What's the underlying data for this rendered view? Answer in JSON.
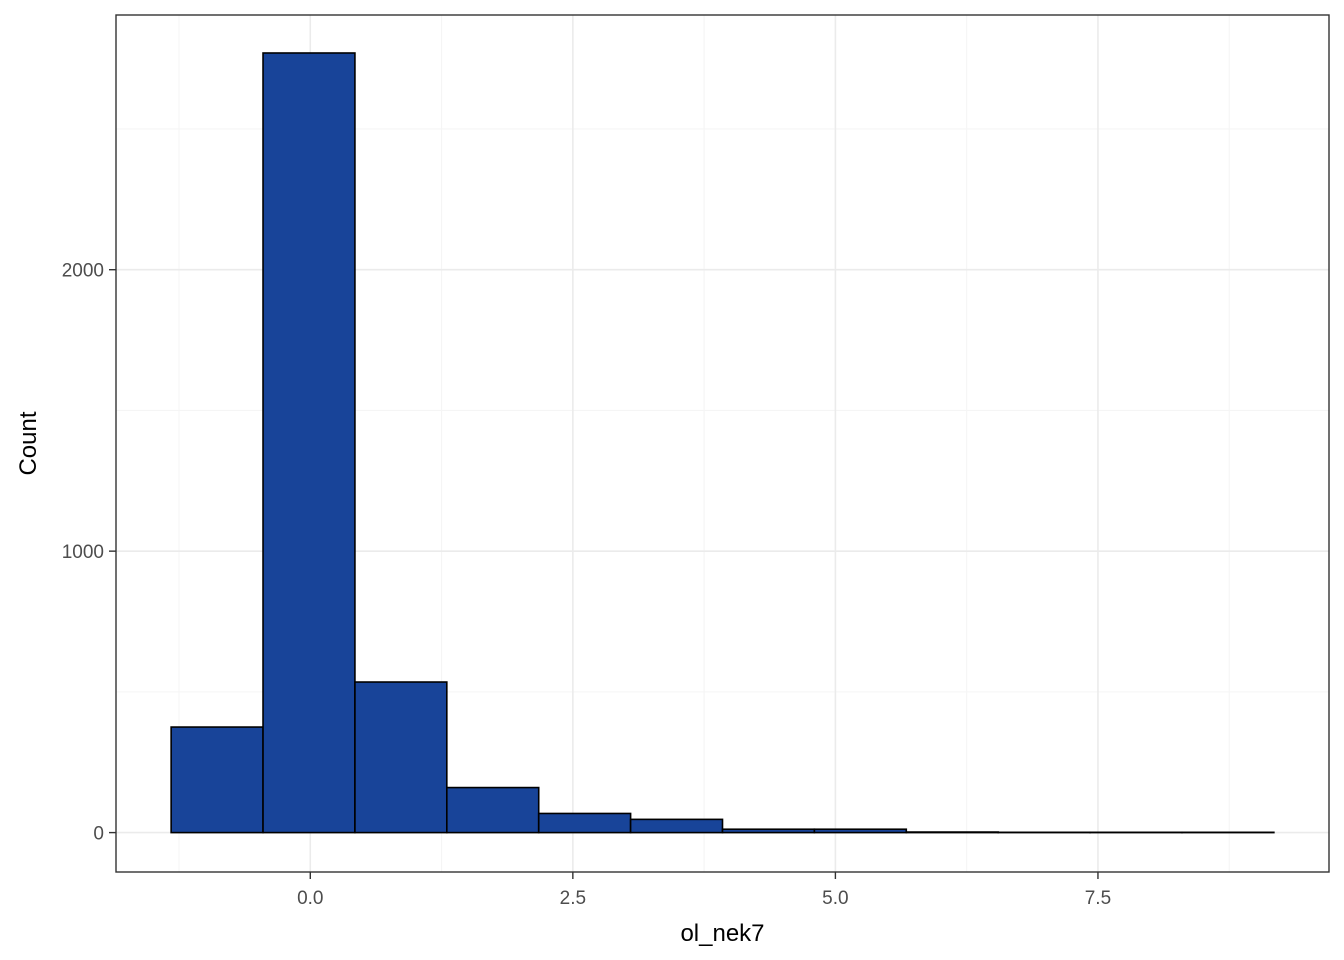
{
  "chart_data": {
    "type": "bar",
    "title": "",
    "xlabel": "ol_nek7",
    "ylabel": "Count",
    "bins": [
      {
        "x0": -1.325,
        "x1": -0.45,
        "count": 375
      },
      {
        "x0": -0.45,
        "x1": 0.425,
        "count": 2770
      },
      {
        "x0": 0.425,
        "x1": 1.3,
        "count": 535
      },
      {
        "x0": 1.3,
        "x1": 2.175,
        "count": 160
      },
      {
        "x0": 2.175,
        "x1": 3.05,
        "count": 68
      },
      {
        "x0": 3.05,
        "x1": 3.925,
        "count": 47
      },
      {
        "x0": 3.925,
        "x1": 4.8,
        "count": 12
      },
      {
        "x0": 4.8,
        "x1": 5.675,
        "count": 12
      },
      {
        "x0": 5.675,
        "x1": 6.55,
        "count": 2
      },
      {
        "x0": 6.55,
        "x1": 7.425,
        "count": 1
      },
      {
        "x0": 7.425,
        "x1": 8.3,
        "count": 1
      },
      {
        "x0": 8.3,
        "x1": 9.175,
        "count": 1
      }
    ],
    "xlim": [
      -1.85,
      9.7
    ],
    "ylim": [
      -140,
      2905
    ],
    "x_ticks": [
      0.0,
      2.5,
      5.0,
      7.5
    ],
    "x_tick_labels": [
      "0.0",
      "2.5",
      "5.0",
      "7.5"
    ],
    "x_minor_ticks": [
      -1.25,
      1.25,
      3.75,
      6.25,
      8.75
    ],
    "y_ticks": [
      0,
      1000,
      2000
    ],
    "y_tick_labels": [
      "0",
      "1000",
      "2000"
    ],
    "y_minor_ticks": [
      500,
      1500,
      2500
    ],
    "grid": true,
    "legend": "none",
    "colors": {
      "bar_fill": "#184499",
      "bar_stroke": "#000000",
      "grid_major": "#ebebeb",
      "grid_minor": "#f5f5f5",
      "panel_border": "#333333",
      "tick_label": "#4d4d4d"
    }
  }
}
